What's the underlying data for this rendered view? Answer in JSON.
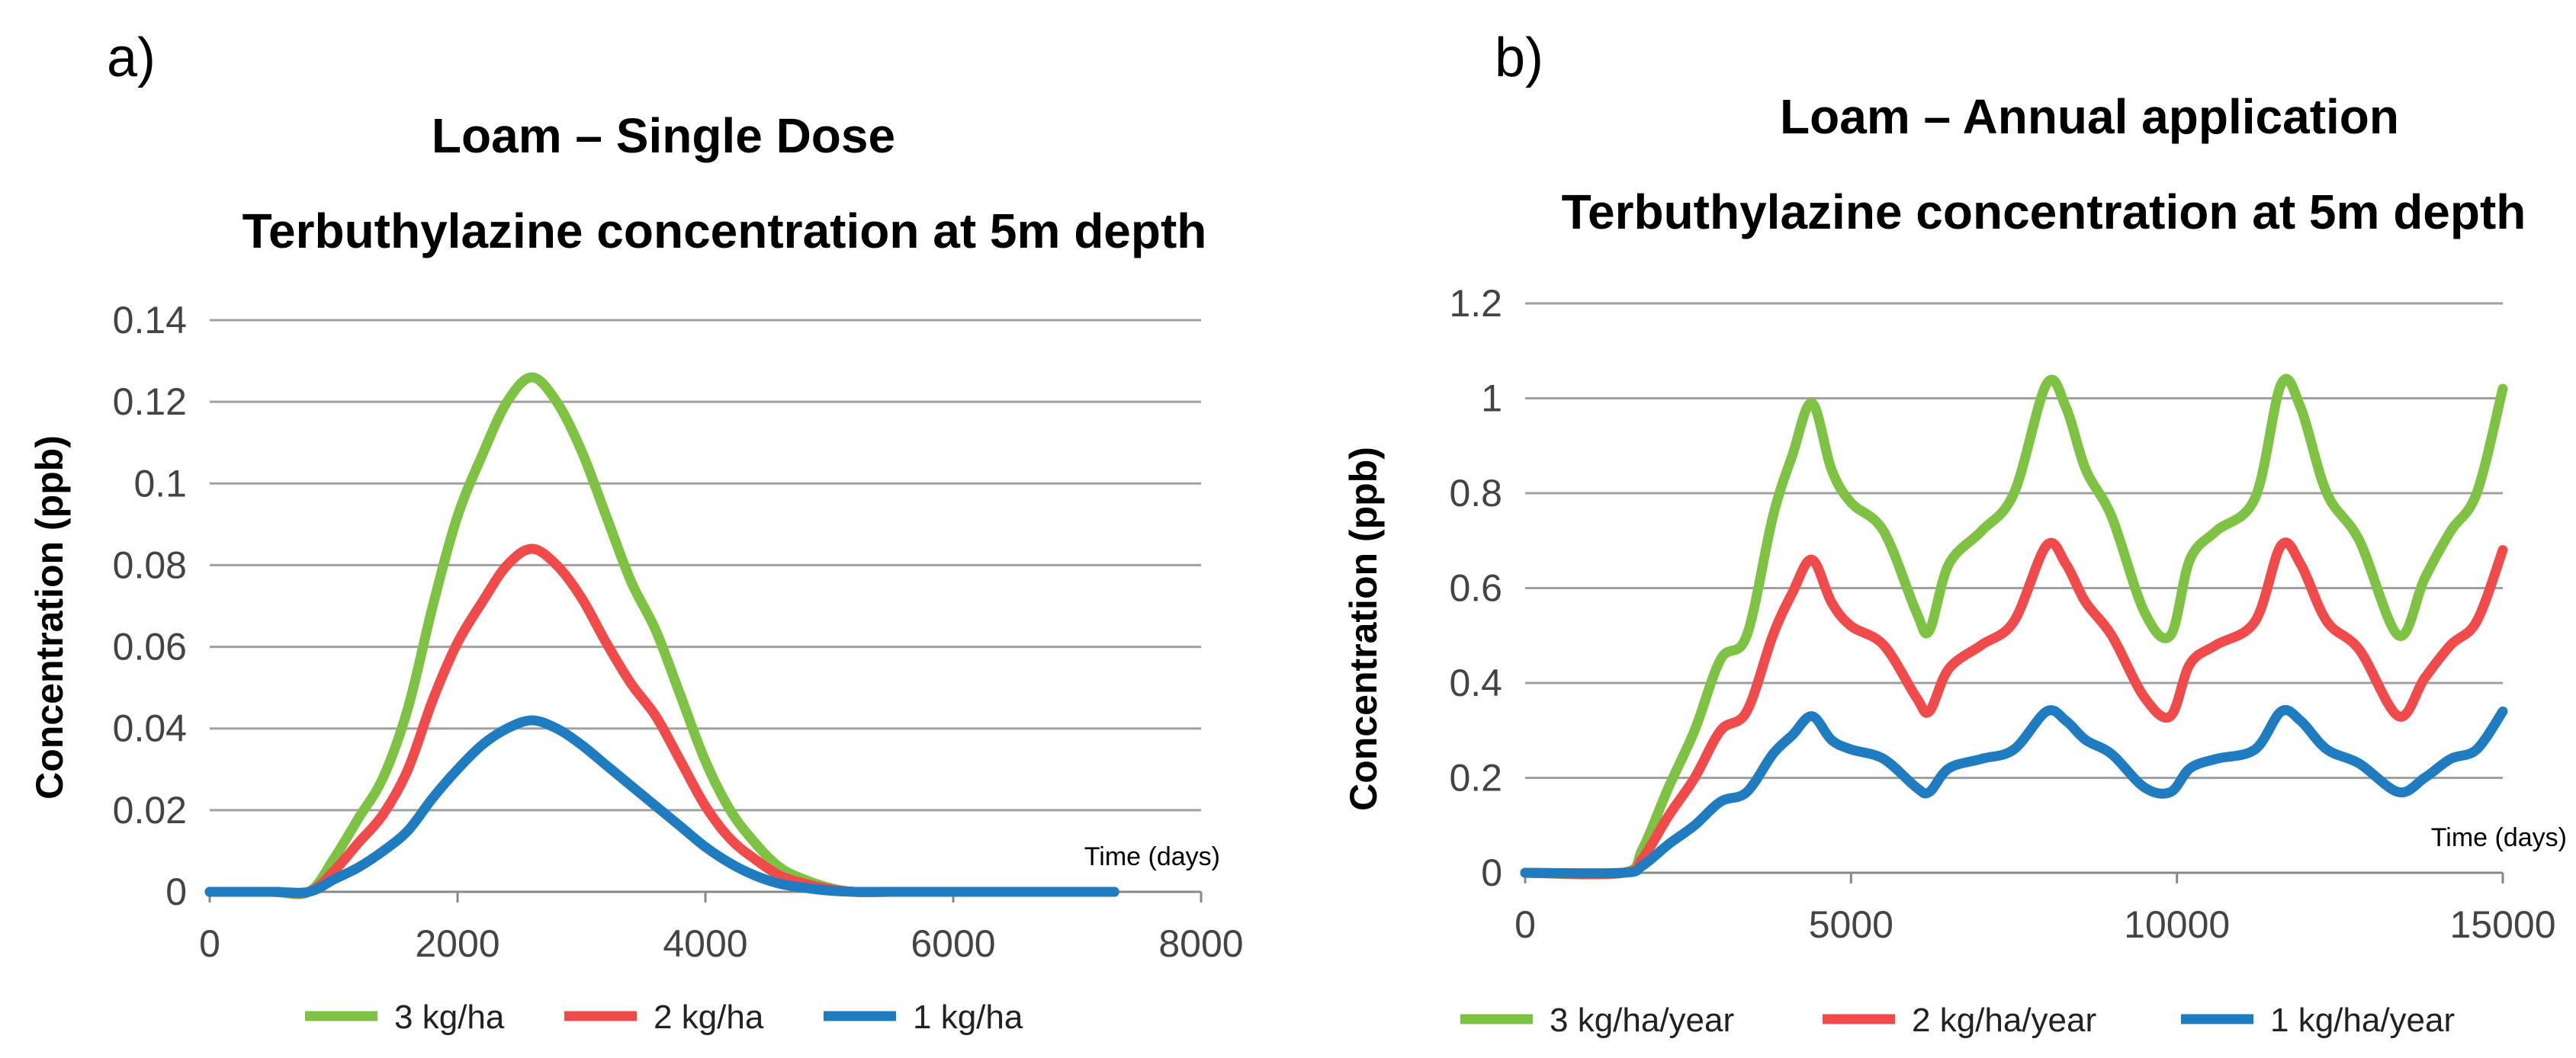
{
  "chart_data": [
    {
      "type": "line",
      "panel_label": "a)",
      "title": "Loam – Single Dose",
      "subtitle": "Terbuthylazine concentration at 5m depth",
      "xlabel": "Time (days)",
      "ylabel": "Concentration (ppb)",
      "xlim": [
        0,
        8000
      ],
      "ylim": [
        0,
        0.14
      ],
      "xticks": [
        0,
        2000,
        4000,
        6000,
        8000
      ],
      "yticks": [
        0,
        0.02,
        0.04,
        0.06,
        0.08,
        0.1,
        0.12,
        0.14
      ],
      "ytick_labels": [
        "0",
        "0.02",
        "0.04",
        "0.06",
        "0.08",
        "0.1",
        "0.12",
        "0.14"
      ],
      "x": [
        0,
        500,
        800,
        1000,
        1200,
        1400,
        1600,
        1800,
        2000,
        2200,
        2400,
        2600,
        2800,
        3000,
        3200,
        3400,
        3600,
        3800,
        4000,
        4200,
        4400,
        4600,
        4800,
        5000,
        5200,
        5500,
        6000,
        7000,
        7300
      ],
      "series": [
        {
          "name": "3 kg/ha",
          "color": "#7dc242",
          "values": [
            0.0,
            0.0,
            0.0,
            0.008,
            0.018,
            0.028,
            0.045,
            0.07,
            0.092,
            0.107,
            0.12,
            0.126,
            0.12,
            0.108,
            0.092,
            0.076,
            0.064,
            0.048,
            0.032,
            0.02,
            0.012,
            0.006,
            0.003,
            0.001,
            0.0,
            0.0,
            0.0,
            0.0,
            0.0
          ]
        },
        {
          "name": "2 kg/ha",
          "color": "#f04a4a",
          "values": [
            0.0,
            0.0,
            0.0,
            0.005,
            0.012,
            0.019,
            0.03,
            0.047,
            0.061,
            0.071,
            0.08,
            0.084,
            0.08,
            0.072,
            0.061,
            0.051,
            0.043,
            0.032,
            0.021,
            0.013,
            0.008,
            0.004,
            0.002,
            0.0007,
            0.0,
            0.0,
            0.0,
            0.0,
            0.0
          ]
        },
        {
          "name": "1 kg/ha",
          "color": "#1f7cc0",
          "values": [
            0.0,
            0.0,
            0.0,
            0.003,
            0.006,
            0.01,
            0.015,
            0.023,
            0.03,
            0.036,
            0.04,
            0.042,
            0.04,
            0.036,
            0.031,
            0.026,
            0.021,
            0.016,
            0.011,
            0.007,
            0.004,
            0.002,
            0.001,
            0.0003,
            0.0,
            0.0,
            0.0,
            0.0,
            0.0
          ]
        }
      ]
    },
    {
      "type": "line",
      "panel_label": "b)",
      "title": "Loam – Annual application",
      "subtitle": "Terbuthylazine concentration at 5m depth",
      "xlabel": "Time (days)",
      "ylabel": "Concentration (ppb)",
      "xlim": [
        0,
        15000
      ],
      "ylim": [
        0,
        1.2
      ],
      "xticks": [
        0,
        5000,
        10000,
        15000
      ],
      "yticks": [
        0,
        0.2,
        0.4,
        0.6,
        0.8,
        1.0,
        1.2
      ],
      "ytick_labels": [
        "0",
        "0.2",
        "0.4",
        "0.6",
        "0.8",
        "1",
        "1.2"
      ],
      "x": [
        0,
        1500,
        1800,
        2200,
        2600,
        3000,
        3400,
        3800,
        4100,
        4400,
        4700,
        5000,
        5500,
        6000,
        6200,
        6500,
        7000,
        7500,
        8000,
        8300,
        8600,
        9000,
        9500,
        9900,
        10200,
        10600,
        11200,
        11600,
        11900,
        12300,
        12800,
        13400,
        13800,
        14200,
        14600,
        15000
      ],
      "series": [
        {
          "name": "3 kg/ha/year",
          "color": "#7dc242",
          "values": [
            0.0,
            0.0,
            0.05,
            0.18,
            0.3,
            0.45,
            0.5,
            0.75,
            0.88,
            0.99,
            0.85,
            0.78,
            0.72,
            0.55,
            0.51,
            0.65,
            0.72,
            0.8,
            1.03,
            0.98,
            0.85,
            0.75,
            0.55,
            0.5,
            0.66,
            0.72,
            0.79,
            1.03,
            0.98,
            0.8,
            0.7,
            0.5,
            0.62,
            0.72,
            0.8,
            1.02
          ]
        },
        {
          "name": "2 kg/ha/year",
          "color": "#f04a4a",
          "values": [
            0.0,
            0.0,
            0.03,
            0.12,
            0.2,
            0.3,
            0.34,
            0.5,
            0.59,
            0.66,
            0.57,
            0.52,
            0.48,
            0.37,
            0.34,
            0.43,
            0.48,
            0.53,
            0.69,
            0.65,
            0.57,
            0.5,
            0.37,
            0.33,
            0.44,
            0.48,
            0.53,
            0.69,
            0.65,
            0.53,
            0.47,
            0.33,
            0.41,
            0.48,
            0.53,
            0.68
          ]
        },
        {
          "name": "1 kg/ha/year",
          "color": "#1f7cc0",
          "values": [
            0.0,
            0.0,
            0.015,
            0.06,
            0.1,
            0.15,
            0.17,
            0.25,
            0.29,
            0.33,
            0.28,
            0.26,
            0.24,
            0.18,
            0.17,
            0.22,
            0.24,
            0.26,
            0.34,
            0.32,
            0.28,
            0.25,
            0.18,
            0.17,
            0.22,
            0.24,
            0.26,
            0.34,
            0.32,
            0.26,
            0.23,
            0.17,
            0.2,
            0.24,
            0.26,
            0.34
          ]
        }
      ]
    }
  ]
}
